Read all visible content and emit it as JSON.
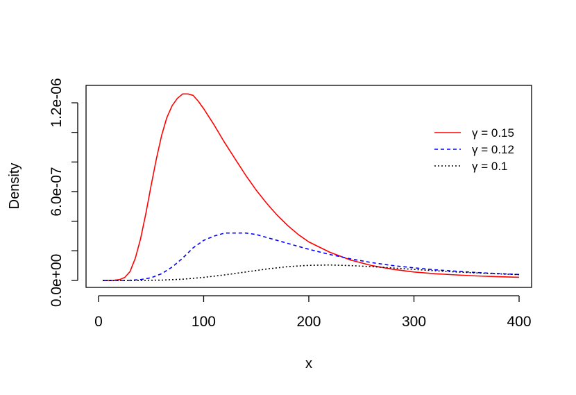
{
  "chart_data": {
    "type": "line",
    "xlabel": "x",
    "ylabel": "Density",
    "xlim": [
      4,
      400
    ],
    "ylim": [
      -4.5e-08,
      1.32e-06
    ],
    "x_ticks": [
      0,
      100,
      200,
      300,
      400
    ],
    "x_tick_labels": [
      "0",
      "100",
      "200",
      "300",
      "400"
    ],
    "y_ticks": [
      0,
      2e-07,
      4e-07,
      6e-07,
      8e-07,
      1e-06,
      1.2e-06
    ],
    "y_tick_labels": [
      "0.0e+00",
      "",
      "",
      "6.0e-07",
      "",
      "",
      "1.2e-06"
    ],
    "grid": false,
    "legend_position": "top-right",
    "series": [
      {
        "name": "γ = 0.15",
        "color": "#ff0000",
        "dash": "solid",
        "x": [
          4,
          10,
          15,
          20,
          25,
          30,
          35,
          40,
          45,
          50,
          55,
          60,
          65,
          70,
          75,
          80,
          85,
          90,
          95,
          100,
          110,
          120,
          130,
          140,
          150,
          160,
          170,
          180,
          190,
          200,
          220,
          240,
          260,
          280,
          300,
          320,
          340,
          360,
          380,
          400
        ],
        "y": [
          0,
          0,
          1e-09,
          5e-09,
          2e-08,
          6e-08,
          1.5e-07,
          2.8e-07,
          4.5e-07,
          6.4e-07,
          8.2e-07,
          9.8e-07,
          1.1e-06,
          1.18e-06,
          1.23e-06,
          1.26e-06,
          1.26e-06,
          1.25e-06,
          1.21e-06,
          1.16e-06,
          1.05e-06,
          9.3e-07,
          8.2e-07,
          7.1e-07,
          6.1e-07,
          5.2e-07,
          4.4e-07,
          3.7e-07,
          3.1e-07,
          2.6e-07,
          1.9e-07,
          1.37e-07,
          1e-07,
          7.5e-08,
          5.7e-08,
          4.5e-08,
          3.7e-08,
          3e-08,
          2.5e-08,
          2.1e-08
        ]
      },
      {
        "name": "γ = 0.12",
        "color": "#0000ff",
        "dash": "dashed",
        "x": [
          4,
          20,
          30,
          40,
          50,
          60,
          70,
          80,
          90,
          100,
          110,
          120,
          130,
          140,
          150,
          160,
          170,
          180,
          190,
          200,
          220,
          240,
          260,
          280,
          300,
          320,
          340,
          360,
          380,
          400
        ],
        "y": [
          0,
          0,
          1e-09,
          5e-09,
          1.8e-08,
          4.5e-08,
          9e-08,
          1.5e-07,
          2.2e-07,
          2.7e-07,
          3e-07,
          3.2e-07,
          3.2e-07,
          3.2e-07,
          3.1e-07,
          2.9e-07,
          2.7e-07,
          2.5e-07,
          2.3e-07,
          2.1e-07,
          1.75e-07,
          1.45e-07,
          1.2e-07,
          1e-07,
          8.5e-08,
          7.2e-08,
          6.2e-08,
          5.3e-08,
          4.6e-08,
          4e-08
        ]
      },
      {
        "name": "γ = 0.1",
        "color": "#000000",
        "dash": "dotted",
        "x": [
          4,
          40,
          60,
          80,
          100,
          120,
          140,
          160,
          180,
          200,
          220,
          240,
          260,
          280,
          300,
          320,
          340,
          360,
          380,
          400
        ],
        "y": [
          0,
          0,
          2e-09,
          8e-09,
          2e-08,
          3.7e-08,
          5.7e-08,
          7.7e-08,
          9.3e-08,
          1.02e-07,
          1.04e-07,
          1e-07,
          9.3e-08,
          8.4e-08,
          7.4e-08,
          6.5e-08,
          5.7e-08,
          5e-08,
          4.4e-08,
          3.9e-08
        ]
      }
    ]
  }
}
